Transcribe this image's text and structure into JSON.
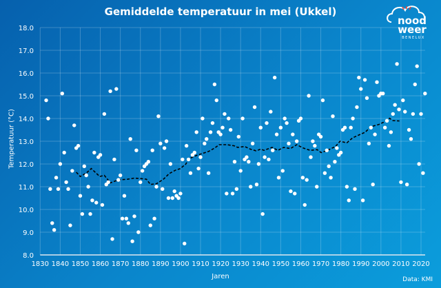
{
  "chart_data": {
    "type": "scatter",
    "title": "Gemiddelde temperatuur in mei (Ukkel)",
    "xlabel": "Jaren",
    "ylabel": "Temperatuur (°C)",
    "xlim": [
      1830,
      2020
    ],
    "ylim": [
      8.0,
      18.0
    ],
    "xticks": [
      "1830",
      "1840",
      "1850",
      "1860",
      "1870",
      "1880",
      "1890",
      "1900",
      "1910",
      "1920",
      "1930",
      "1940",
      "1950",
      "1960",
      "1970",
      "1980",
      "1990",
      "2000",
      "2010",
      "2020"
    ],
    "yticks": [
      "8.0",
      "9.0",
      "10.0",
      "11.0",
      "12.0",
      "13.0",
      "14.0",
      "15.0",
      "16.0",
      "17.0",
      "18.0"
    ],
    "grid": true,
    "point_color": "#ffffff",
    "trend_color": "#000000",
    "points": [
      [
        1833,
        14.8
      ],
      [
        1834,
        14.0
      ],
      [
        1835,
        10.9
      ],
      [
        1836,
        9.4
      ],
      [
        1837,
        9.1
      ],
      [
        1838,
        11.4
      ],
      [
        1839,
        10.9
      ],
      [
        1840,
        12.0
      ],
      [
        1841,
        15.1
      ],
      [
        1842,
        12.5
      ],
      [
        1843,
        11.2
      ],
      [
        1844,
        10.9
      ],
      [
        1845,
        9.3
      ],
      [
        1846,
        11.7
      ],
      [
        1847,
        13.7
      ],
      [
        1848,
        12.7
      ],
      [
        1849,
        12.8
      ],
      [
        1850,
        10.6
      ],
      [
        1851,
        9.8
      ],
      [
        1852,
        11.9
      ],
      [
        1853,
        11.5
      ],
      [
        1854,
        11.0
      ],
      [
        1855,
        9.8
      ],
      [
        1856,
        10.4
      ],
      [
        1857,
        12.5
      ],
      [
        1858,
        10.3
      ],
      [
        1859,
        12.3
      ],
      [
        1860,
        12.4
      ],
      [
        1861,
        10.2
      ],
      [
        1862,
        14.2
      ],
      [
        1863,
        11.1
      ],
      [
        1864,
        11.2
      ],
      [
        1865,
        15.2
      ],
      [
        1866,
        8.7
      ],
      [
        1867,
        12.2
      ],
      [
        1868,
        15.3
      ],
      [
        1869,
        11.3
      ],
      [
        1870,
        11.5
      ],
      [
        1871,
        9.6
      ],
      [
        1872,
        10.6
      ],
      [
        1873,
        9.6
      ],
      [
        1874,
        9.4
      ],
      [
        1875,
        13.1
      ],
      [
        1876,
        8.6
      ],
      [
        1877,
        9.7
      ],
      [
        1878,
        12.6
      ],
      [
        1879,
        9.0
      ],
      [
        1880,
        11.2
      ],
      [
        1881,
        11.7
      ],
      [
        1882,
        11.9
      ],
      [
        1883,
        12.0
      ],
      [
        1884,
        12.1
      ],
      [
        1885,
        9.3
      ],
      [
        1886,
        12.6
      ],
      [
        1887,
        9.6
      ],
      [
        1888,
        11.0
      ],
      [
        1889,
        14.1
      ],
      [
        1890,
        12.9
      ],
      [
        1891,
        10.9
      ],
      [
        1892,
        12.7
      ],
      [
        1893,
        13.0
      ],
      [
        1894,
        10.5
      ],
      [
        1895,
        12.0
      ],
      [
        1896,
        10.5
      ],
      [
        1897,
        10.8
      ],
      [
        1898,
        10.6
      ],
      [
        1899,
        10.5
      ],
      [
        1900,
        10.7
      ],
      [
        1901,
        12.2
      ],
      [
        1902,
        8.5
      ],
      [
        1903,
        12.8
      ],
      [
        1904,
        12.2
      ],
      [
        1905,
        11.6
      ],
      [
        1906,
        12.4
      ],
      [
        1907,
        12.5
      ],
      [
        1908,
        13.4
      ],
      [
        1909,
        11.8
      ],
      [
        1910,
        12.3
      ],
      [
        1911,
        14.0
      ],
      [
        1912,
        12.9
      ],
      [
        1913,
        13.1
      ],
      [
        1914,
        11.6
      ],
      [
        1915,
        13.4
      ],
      [
        1916,
        13.8
      ],
      [
        1917,
        15.5
      ],
      [
        1918,
        14.8
      ],
      [
        1919,
        13.4
      ],
      [
        1920,
        13.3
      ],
      [
        1921,
        13.6
      ],
      [
        1922,
        14.2
      ],
      [
        1923,
        10.7
      ],
      [
        1924,
        14.0
      ],
      [
        1925,
        13.5
      ],
      [
        1926,
        10.7
      ],
      [
        1927,
        12.1
      ],
      [
        1928,
        10.9
      ],
      [
        1929,
        13.2
      ],
      [
        1930,
        11.7
      ],
      [
        1931,
        14.0
      ],
      [
        1932,
        12.2
      ],
      [
        1933,
        12.3
      ],
      [
        1934,
        12.1
      ],
      [
        1935,
        11.0
      ],
      [
        1936,
        12.9
      ],
      [
        1937,
        14.5
      ],
      [
        1938,
        11.1
      ],
      [
        1939,
        12.0
      ],
      [
        1940,
        13.6
      ],
      [
        1941,
        9.8
      ],
      [
        1942,
        12.3
      ],
      [
        1943,
        13.8
      ],
      [
        1944,
        12.2
      ],
      [
        1945,
        14.3
      ],
      [
        1946,
        12.6
      ],
      [
        1947,
        15.8
      ],
      [
        1948,
        13.3
      ],
      [
        1949,
        11.4
      ],
      [
        1950,
        13.6
      ],
      [
        1951,
        11.7
      ],
      [
        1952,
        14.0
      ],
      [
        1953,
        13.8
      ],
      [
        1954,
        12.9
      ],
      [
        1955,
        10.8
      ],
      [
        1956,
        13.3
      ],
      [
        1957,
        10.7
      ],
      [
        1958,
        13.0
      ],
      [
        1959,
        13.9
      ],
      [
        1960,
        14.0
      ],
      [
        1961,
        11.4
      ],
      [
        1962,
        10.2
      ],
      [
        1963,
        11.3
      ],
      [
        1964,
        15.0
      ],
      [
        1965,
        12.3
      ],
      [
        1966,
        13.0
      ],
      [
        1967,
        12.8
      ],
      [
        1968,
        11.0
      ],
      [
        1969,
        13.3
      ],
      [
        1970,
        13.2
      ],
      [
        1971,
        14.8
      ],
      [
        1972,
        11.6
      ],
      [
        1973,
        12.6
      ],
      [
        1974,
        11.9
      ],
      [
        1975,
        11.4
      ],
      [
        1976,
        14.1
      ],
      [
        1977,
        12.1
      ],
      [
        1978,
        12.7
      ],
      [
        1979,
        12.4
      ],
      [
        1980,
        12.5
      ],
      [
        1981,
        13.5
      ],
      [
        1982,
        13.6
      ],
      [
        1983,
        11.0
      ],
      [
        1984,
        10.4
      ],
      [
        1985,
        13.6
      ],
      [
        1986,
        14.0
      ],
      [
        1987,
        10.9
      ],
      [
        1988,
        14.5
      ],
      [
        1989,
        15.8
      ],
      [
        1990,
        15.3
      ],
      [
        1991,
        10.4
      ],
      [
        1992,
        15.7
      ],
      [
        1993,
        14.9
      ],
      [
        1994,
        12.9
      ],
      [
        1995,
        13.6
      ],
      [
        1996,
        11.1
      ],
      [
        1997,
        13.3
      ],
      [
        1998,
        15.6
      ],
      [
        1999,
        15.0
      ],
      [
        2000,
        15.1
      ],
      [
        2001,
        15.1
      ],
      [
        2002,
        13.6
      ],
      [
        2003,
        13.9
      ],
      [
        2004,
        12.8
      ],
      [
        2005,
        13.4
      ],
      [
        2006,
        14.2
      ],
      [
        2007,
        14.6
      ],
      [
        2008,
        16.4
      ],
      [
        2009,
        14.4
      ],
      [
        2010,
        11.2
      ],
      [
        2011,
        14.8
      ],
      [
        2012,
        14.3
      ],
      [
        2013,
        11.1
      ],
      [
        2014,
        13.5
      ],
      [
        2015,
        13.1
      ],
      [
        2016,
        14.2
      ],
      [
        2017,
        15.5
      ],
      [
        2018,
        16.3
      ],
      [
        2019,
        12.0
      ],
      [
        2020,
        14.2
      ],
      [
        2021,
        11.6
      ],
      [
        2022,
        15.1
      ]
    ],
    "trend": [
      [
        1848,
        11.64
      ],
      [
        1850,
        11.45
      ],
      [
        1853,
        11.6
      ],
      [
        1855.5,
        11.8
      ],
      [
        1859.7,
        11.45
      ],
      [
        1862,
        11.5
      ],
      [
        1865,
        11.17
      ],
      [
        1869,
        11.3
      ],
      [
        1873.7,
        11.33
      ],
      [
        1877,
        11.38
      ],
      [
        1880,
        11.36
      ],
      [
        1883,
        11.33
      ],
      [
        1885,
        11.1
      ],
      [
        1888,
        11.13
      ],
      [
        1891.5,
        11.33
      ],
      [
        1894.4,
        11.58
      ],
      [
        1897.8,
        11.74
      ],
      [
        1899.8,
        11.79
      ],
      [
        1902.6,
        11.99
      ],
      [
        1904.4,
        12.24
      ],
      [
        1908.4,
        12.39
      ],
      [
        1914,
        12.55
      ],
      [
        1917,
        12.7
      ],
      [
        1919.3,
        12.85
      ],
      [
        1923.3,
        12.85
      ],
      [
        1926.8,
        12.8
      ],
      [
        1928.5,
        12.73
      ],
      [
        1932,
        12.77
      ],
      [
        1934.9,
        12.65
      ],
      [
        1937.7,
        12.58
      ],
      [
        1940,
        12.65
      ],
      [
        1941.7,
        12.6
      ],
      [
        1945.7,
        12.73
      ],
      [
        1948.6,
        12.6
      ],
      [
        1951.5,
        12.73
      ],
      [
        1954.9,
        12.68
      ],
      [
        1958,
        12.85
      ],
      [
        1961.3,
        12.7
      ],
      [
        1964.7,
        12.6
      ],
      [
        1968.2,
        12.63
      ],
      [
        1970.2,
        12.5
      ],
      [
        1973.3,
        12.6
      ],
      [
        1977.3,
        12.77
      ],
      [
        1979.6,
        13.0
      ],
      [
        1983,
        12.93
      ],
      [
        1985.9,
        13.15
      ],
      [
        1992.2,
        13.4
      ],
      [
        1995,
        13.64
      ],
      [
        1999,
        13.74
      ],
      [
        2003.1,
        13.91
      ],
      [
        2004.3,
        14.01
      ],
      [
        2006,
        13.91
      ],
      [
        2009.2,
        13.89
      ]
    ]
  },
  "source": "Data: KMI",
  "logo": {
    "line1": "nood",
    "line2": "weer",
    "line3": "BENELUX"
  }
}
